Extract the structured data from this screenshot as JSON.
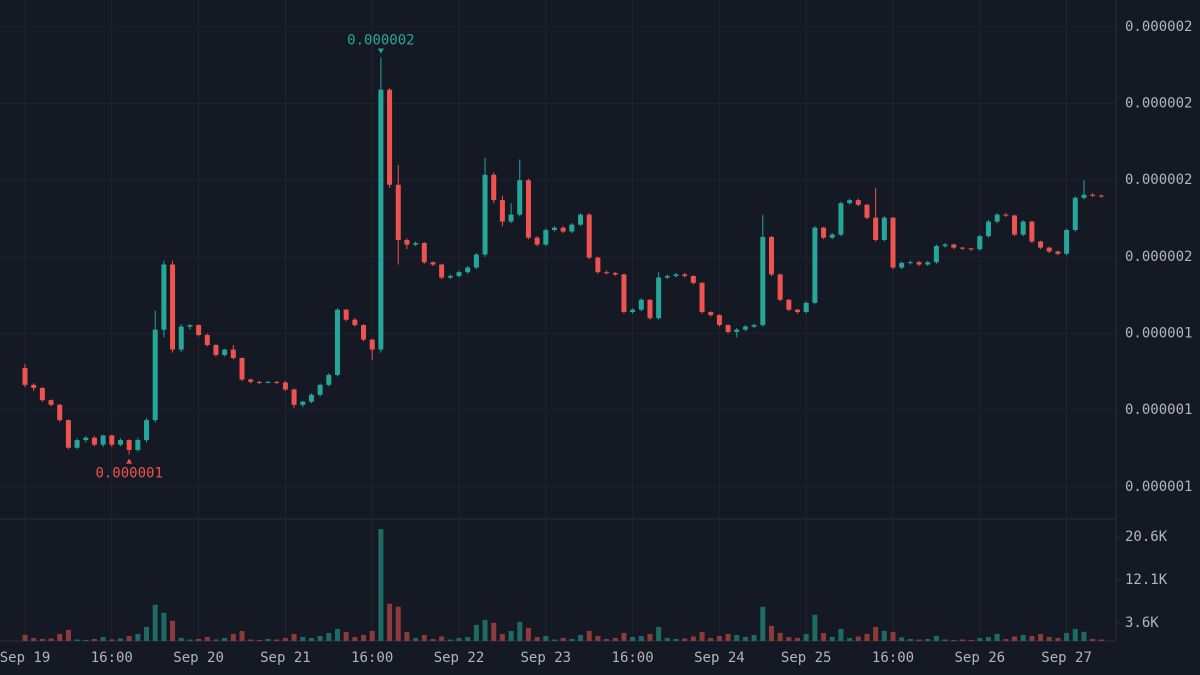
{
  "chart_data": {
    "type": "candlestick",
    "categories": [
      "Sep 19",
      null,
      null,
      null,
      null,
      null,
      null,
      null,
      null,
      null,
      "16:00",
      null,
      null,
      null,
      null,
      null,
      null,
      null,
      null,
      null,
      "Sep 20",
      null,
      null,
      null,
      null,
      null,
      null,
      null,
      null,
      null,
      "Sep 21",
      null,
      null,
      null,
      null,
      null,
      null,
      null,
      null,
      null,
      "16:00",
      null,
      null,
      null,
      null,
      null,
      null,
      null,
      null,
      null,
      "Sep 22",
      null,
      null,
      null,
      null,
      null,
      null,
      null,
      null,
      null,
      "Sep 23",
      null,
      null,
      null,
      null,
      null,
      null,
      null,
      null,
      null,
      "16:00",
      null,
      null,
      null,
      null,
      null,
      null,
      null,
      null,
      null,
      "Sep 24",
      null,
      null,
      null,
      null,
      null,
      null,
      null,
      null,
      null,
      "Sep 25",
      null,
      null,
      null,
      null,
      null,
      null,
      null,
      null,
      null,
      "16:00",
      null,
      null,
      null,
      null,
      null,
      null,
      null,
      null,
      null,
      "Sep 26",
      null,
      null,
      null,
      null,
      null,
      null,
      null,
      null,
      null,
      "Sep 27",
      null,
      null,
      null,
      null
    ],
    "open": [
      1.355e-06,
      1.333e-06,
      1.329e-06,
      1.313e-06,
      1.307e-06,
      1.287e-06,
      1.251e-06,
      1.261e-06,
      1.264e-06,
      1.255e-06,
      1.267e-06,
      1.255e-06,
      1.261e-06,
      1.248e-06,
      1.261e-06,
      1.287e-06,
      1.405e-06,
      1.49e-06,
      1.379e-06,
      1.409e-06,
      1.411e-06,
      1.398e-06,
      1.385e-06,
      1.372e-06,
      1.379e-06,
      1.368e-06,
      1.34e-06,
      1.337e-06,
      1.336e-06,
      1.337e-06,
      1.336e-06,
      1.327e-06,
      1.307e-06,
      1.311e-06,
      1.32e-06,
      1.333e-06,
      1.346e-06,
      1.431e-06,
      1.418e-06,
      1.411e-06,
      1.392e-06,
      1.379e-06,
      1.718e-06,
      1.594e-06,
      1.522e-06,
      1.516e-06,
      1.518e-06,
      1.493e-06,
      1.49e-06,
      1.473e-06,
      1.475e-06,
      1.48e-06,
      1.486e-06,
      1.503e-06,
      1.607e-06,
      1.574e-06,
      1.546e-06,
      1.555e-06,
      1.6e-06,
      1.525e-06,
      1.516e-06,
      1.535e-06,
      1.538e-06,
      1.533e-06,
      1.542e-06,
      1.555e-06,
      1.499e-06,
      1.48e-06,
      1.479e-06,
      1.477e-06,
      1.428e-06,
      1.431e-06,
      1.444e-06,
      1.42e-06,
      1.473e-06,
      1.475e-06,
      1.477e-06,
      1.475e-06,
      1.466e-06,
      1.428e-06,
      1.424e-06,
      1.411e-06,
      1.402e-06,
      1.405e-06,
      1.409e-06,
      1.411e-06,
      1.526e-06,
      1.477e-06,
      1.444e-06,
      1.431e-06,
      1.428e-06,
      1.44e-06,
      1.538e-06,
      1.525e-06,
      1.529e-06,
      1.57e-06,
      1.574e-06,
      1.568e-06,
      1.551e-06,
      1.522e-06,
      1.551e-06,
      1.486e-06,
      1.492e-06,
      1.493e-06,
      1.49e-06,
      1.493e-06,
      1.514e-06,
      1.516e-06,
      1.512e-06,
      1.511e-06,
      1.51e-06,
      1.527e-06,
      1.546e-06,
      1.555e-06,
      1.554e-06,
      1.529e-06,
      1.546e-06,
      1.52e-06,
      1.512e-06,
      1.507e-06,
      1.504e-06,
      1.535e-06,
      1.577e-06,
      1.581e-06,
      1.58e-06
    ],
    "high": [
      1.36e-06,
      1.335e-06,
      1.33e-06,
      1.314e-06,
      1.308e-06,
      1.288e-06,
      1.263e-06,
      1.266e-06,
      1.266e-06,
      1.268e-06,
      1.268e-06,
      1.263e-06,
      1.262e-06,
      1.264e-06,
      1.29e-06,
      1.43e-06,
      1.495e-06,
      1.495e-06,
      1.412e-06,
      1.412e-06,
      1.412e-06,
      1.4e-06,
      1.386e-06,
      1.38e-06,
      1.385e-06,
      1.369e-06,
      1.341e-06,
      1.338e-06,
      1.338e-06,
      1.338e-06,
      1.338e-06,
      1.328e-06,
      1.312e-06,
      1.322e-06,
      1.335e-06,
      1.348e-06,
      1.433e-06,
      1.432e-06,
      1.42e-06,
      1.412e-06,
      1.393e-06,
      1.76e-06,
      1.72e-06,
      1.62e-06,
      1.524e-06,
      1.52e-06,
      1.519e-06,
      1.494e-06,
      1.491e-06,
      1.477e-06,
      1.482e-06,
      1.488e-06,
      1.505e-06,
      1.629e-06,
      1.61e-06,
      1.58e-06,
      1.57e-06,
      1.627e-06,
      1.602e-06,
      1.527e-06,
      1.537e-06,
      1.54e-06,
      1.54e-06,
      1.544e-06,
      1.557e-06,
      1.557e-06,
      1.5e-06,
      1.482e-06,
      1.48e-06,
      1.478e-06,
      1.433e-06,
      1.446e-06,
      1.445e-06,
      1.48e-06,
      1.477e-06,
      1.479e-06,
      1.479e-06,
      1.476e-06,
      1.467e-06,
      1.429e-06,
      1.425e-06,
      1.412e-06,
      1.407e-06,
      1.411e-06,
      1.413e-06,
      1.555e-06,
      1.527e-06,
      1.478e-06,
      1.445e-06,
      1.432e-06,
      1.442e-06,
      1.54e-06,
      1.539e-06,
      1.531e-06,
      1.572e-06,
      1.576e-06,
      1.576e-06,
      1.569e-06,
      1.59e-06,
      1.553e-06,
      1.552e-06,
      1.494e-06,
      1.495e-06,
      1.495e-06,
      1.495e-06,
      1.516e-06,
      1.518e-06,
      1.517e-06,
      1.513e-06,
      1.512e-06,
      1.529e-06,
      1.548e-06,
      1.557e-06,
      1.557e-06,
      1.555e-06,
      1.548e-06,
      1.547e-06,
      1.521e-06,
      1.513e-06,
      1.508e-06,
      1.537e-06,
      1.579e-06,
      1.6e-06,
      1.583e-06,
      1.581e-06
    ],
    "low": [
      1.33e-06,
      1.325e-06,
      1.311e-06,
      1.305e-06,
      1.285e-06,
      1.249e-06,
      1.249e-06,
      1.258e-06,
      1.253e-06,
      1.252e-06,
      1.252e-06,
      1.253e-06,
      1.242e-06,
      1.246e-06,
      1.258e-06,
      1.284e-06,
      1.395e-06,
      1.375e-06,
      1.376e-06,
      1.405e-06,
      1.396e-06,
      1.383e-06,
      1.37e-06,
      1.37e-06,
      1.366e-06,
      1.338e-06,
      1.335e-06,
      1.334e-06,
      1.335e-06,
      1.334e-06,
      1.325e-06,
      1.303e-06,
      1.304e-06,
      1.309e-06,
      1.318e-06,
      1.331e-06,
      1.344e-06,
      1.416e-06,
      1.409e-06,
      1.39e-06,
      1.365e-06,
      1.375e-06,
      1.59e-06,
      1.49e-06,
      1.51e-06,
      1.514e-06,
      1.491e-06,
      1.488e-06,
      1.471e-06,
      1.471e-06,
      1.473e-06,
      1.478e-06,
      1.484e-06,
      1.5e-06,
      1.57e-06,
      1.54e-06,
      1.544e-06,
      1.553e-06,
      1.523e-06,
      1.514e-06,
      1.514e-06,
      1.533e-06,
      1.531e-06,
      1.531e-06,
      1.54e-06,
      1.497e-06,
      1.478e-06,
      1.477e-06,
      1.475e-06,
      1.426e-06,
      1.426e-06,
      1.429e-06,
      1.418e-06,
      1.418e-06,
      1.471e-06,
      1.473e-06,
      1.473e-06,
      1.464e-06,
      1.426e-06,
      1.422e-06,
      1.409e-06,
      1.4e-06,
      1.395e-06,
      1.403e-06,
      1.407e-06,
      1.409e-06,
      1.475e-06,
      1.442e-06,
      1.429e-06,
      1.426e-06,
      1.426e-06,
      1.438e-06,
      1.523e-06,
      1.523e-06,
      1.527e-06,
      1.568e-06,
      1.566e-06,
      1.549e-06,
      1.52e-06,
      1.52e-06,
      1.484e-06,
      1.484e-06,
      1.49e-06,
      1.488e-06,
      1.488e-06,
      1.491e-06,
      1.512e-06,
      1.51e-06,
      1.509e-06,
      1.508e-06,
      1.508e-06,
      1.525e-06,
      1.544e-06,
      1.552e-06,
      1.527e-06,
      1.527e-06,
      1.518e-06,
      1.51e-06,
      1.505e-06,
      1.502e-06,
      1.502e-06,
      1.533e-06,
      1.575e-06,
      1.578e-06,
      1.577e-06
    ],
    "close": [
      1.333e-06,
      1.329e-06,
      1.313e-06,
      1.307e-06,
      1.287e-06,
      1.251e-06,
      1.261e-06,
      1.264e-06,
      1.255e-06,
      1.267e-06,
      1.255e-06,
      1.261e-06,
      1.248e-06,
      1.261e-06,
      1.287e-06,
      1.405e-06,
      1.49e-06,
      1.379e-06,
      1.409e-06,
      1.411e-06,
      1.398e-06,
      1.385e-06,
      1.372e-06,
      1.379e-06,
      1.368e-06,
      1.34e-06,
      1.337e-06,
      1.336e-06,
      1.337e-06,
      1.336e-06,
      1.327e-06,
      1.307e-06,
      1.311e-06,
      1.32e-06,
      1.333e-06,
      1.346e-06,
      1.431e-06,
      1.418e-06,
      1.411e-06,
      1.392e-06,
      1.379e-06,
      1.718e-06,
      1.594e-06,
      1.522e-06,
      1.516e-06,
      1.518e-06,
      1.493e-06,
      1.49e-06,
      1.473e-06,
      1.475e-06,
      1.48e-06,
      1.486e-06,
      1.503e-06,
      1.607e-06,
      1.574e-06,
      1.546e-06,
      1.555e-06,
      1.6e-06,
      1.525e-06,
      1.516e-06,
      1.535e-06,
      1.538e-06,
      1.533e-06,
      1.542e-06,
      1.555e-06,
      1.499e-06,
      1.48e-06,
      1.479e-06,
      1.477e-06,
      1.428e-06,
      1.431e-06,
      1.444e-06,
      1.42e-06,
      1.473e-06,
      1.475e-06,
      1.477e-06,
      1.475e-06,
      1.466e-06,
      1.428e-06,
      1.424e-06,
      1.411e-06,
      1.402e-06,
      1.405e-06,
      1.409e-06,
      1.411e-06,
      1.526e-06,
      1.477e-06,
      1.444e-06,
      1.431e-06,
      1.428e-06,
      1.44e-06,
      1.538e-06,
      1.525e-06,
      1.529e-06,
      1.57e-06,
      1.574e-06,
      1.568e-06,
      1.551e-06,
      1.522e-06,
      1.551e-06,
      1.486e-06,
      1.492e-06,
      1.493e-06,
      1.49e-06,
      1.493e-06,
      1.514e-06,
      1.516e-06,
      1.512e-06,
      1.511e-06,
      1.51e-06,
      1.527e-06,
      1.546e-06,
      1.555e-06,
      1.554e-06,
      1.529e-06,
      1.546e-06,
      1.52e-06,
      1.512e-06,
      1.507e-06,
      1.504e-06,
      1.535e-06,
      1.577e-06,
      1.581e-06,
      1.58e-06,
      1.579e-06
    ],
    "volume": [
      1200,
      600,
      400,
      500,
      1400,
      2200,
      300,
      200,
      400,
      800,
      300,
      500,
      1000,
      1400,
      2800,
      7200,
      5600,
      4000,
      600,
      300,
      400,
      800,
      300,
      600,
      1400,
      2000,
      300,
      200,
      400,
      300,
      600,
      1400,
      800,
      600,
      1000,
      1600,
      2400,
      1800,
      800,
      1200,
      2000,
      22200,
      7400,
      6800,
      1800,
      600,
      1200,
      400,
      900,
      300,
      600,
      800,
      3200,
      4200,
      3600,
      1400,
      2000,
      3800,
      2600,
      800,
      1000,
      300,
      600,
      400,
      1200,
      2000,
      1000,
      400,
      600,
      1600,
      800,
      1000,
      1400,
      2800,
      600,
      400,
      500,
      900,
      1800,
      600,
      1000,
      1400,
      1200,
      800,
      1200,
      6800,
      3000,
      1600,
      800,
      600,
      1400,
      5200,
      1600,
      800,
      2400,
      600,
      900,
      1400,
      2800,
      2000,
      1800,
      700,
      400,
      300,
      400,
      1000,
      300,
      200,
      300,
      200,
      600,
      800,
      1400,
      400,
      900,
      1200,
      1000,
      1400,
      800,
      600,
      1600,
      2400,
      1800,
      400,
      300
    ],
    "ylim": [
      1.158e-06,
      1.822e-06
    ],
    "yticks": [
      {
        "value": 1.2e-06,
        "label": "0.000001"
      },
      {
        "value": 1.3e-06,
        "label": "0.000001"
      },
      {
        "value": 1.4e-06,
        "label": "0.000001"
      },
      {
        "value": 1.5e-06,
        "label": "0.000002"
      },
      {
        "value": 1.6e-06,
        "label": "0.000002"
      },
      {
        "value": 1.7e-06,
        "label": "0.000002"
      },
      {
        "value": 1.8e-06,
        "label": "0.000002"
      }
    ],
    "volume_lim": [
      0,
      24200
    ],
    "volume_ticks": [
      {
        "value": 3600,
        "label": "3.6K"
      },
      {
        "value": 12100,
        "label": "12.1K"
      },
      {
        "value": 20600,
        "label": "20.6K"
      }
    ],
    "high_label": "0.000002",
    "low_label": "0.000001",
    "up_color": "#26a69a",
    "down_color": "#ef5350",
    "volume_up_color": "#1d6b64",
    "volume_down_color": "#8c3a3a",
    "grid": true
  }
}
